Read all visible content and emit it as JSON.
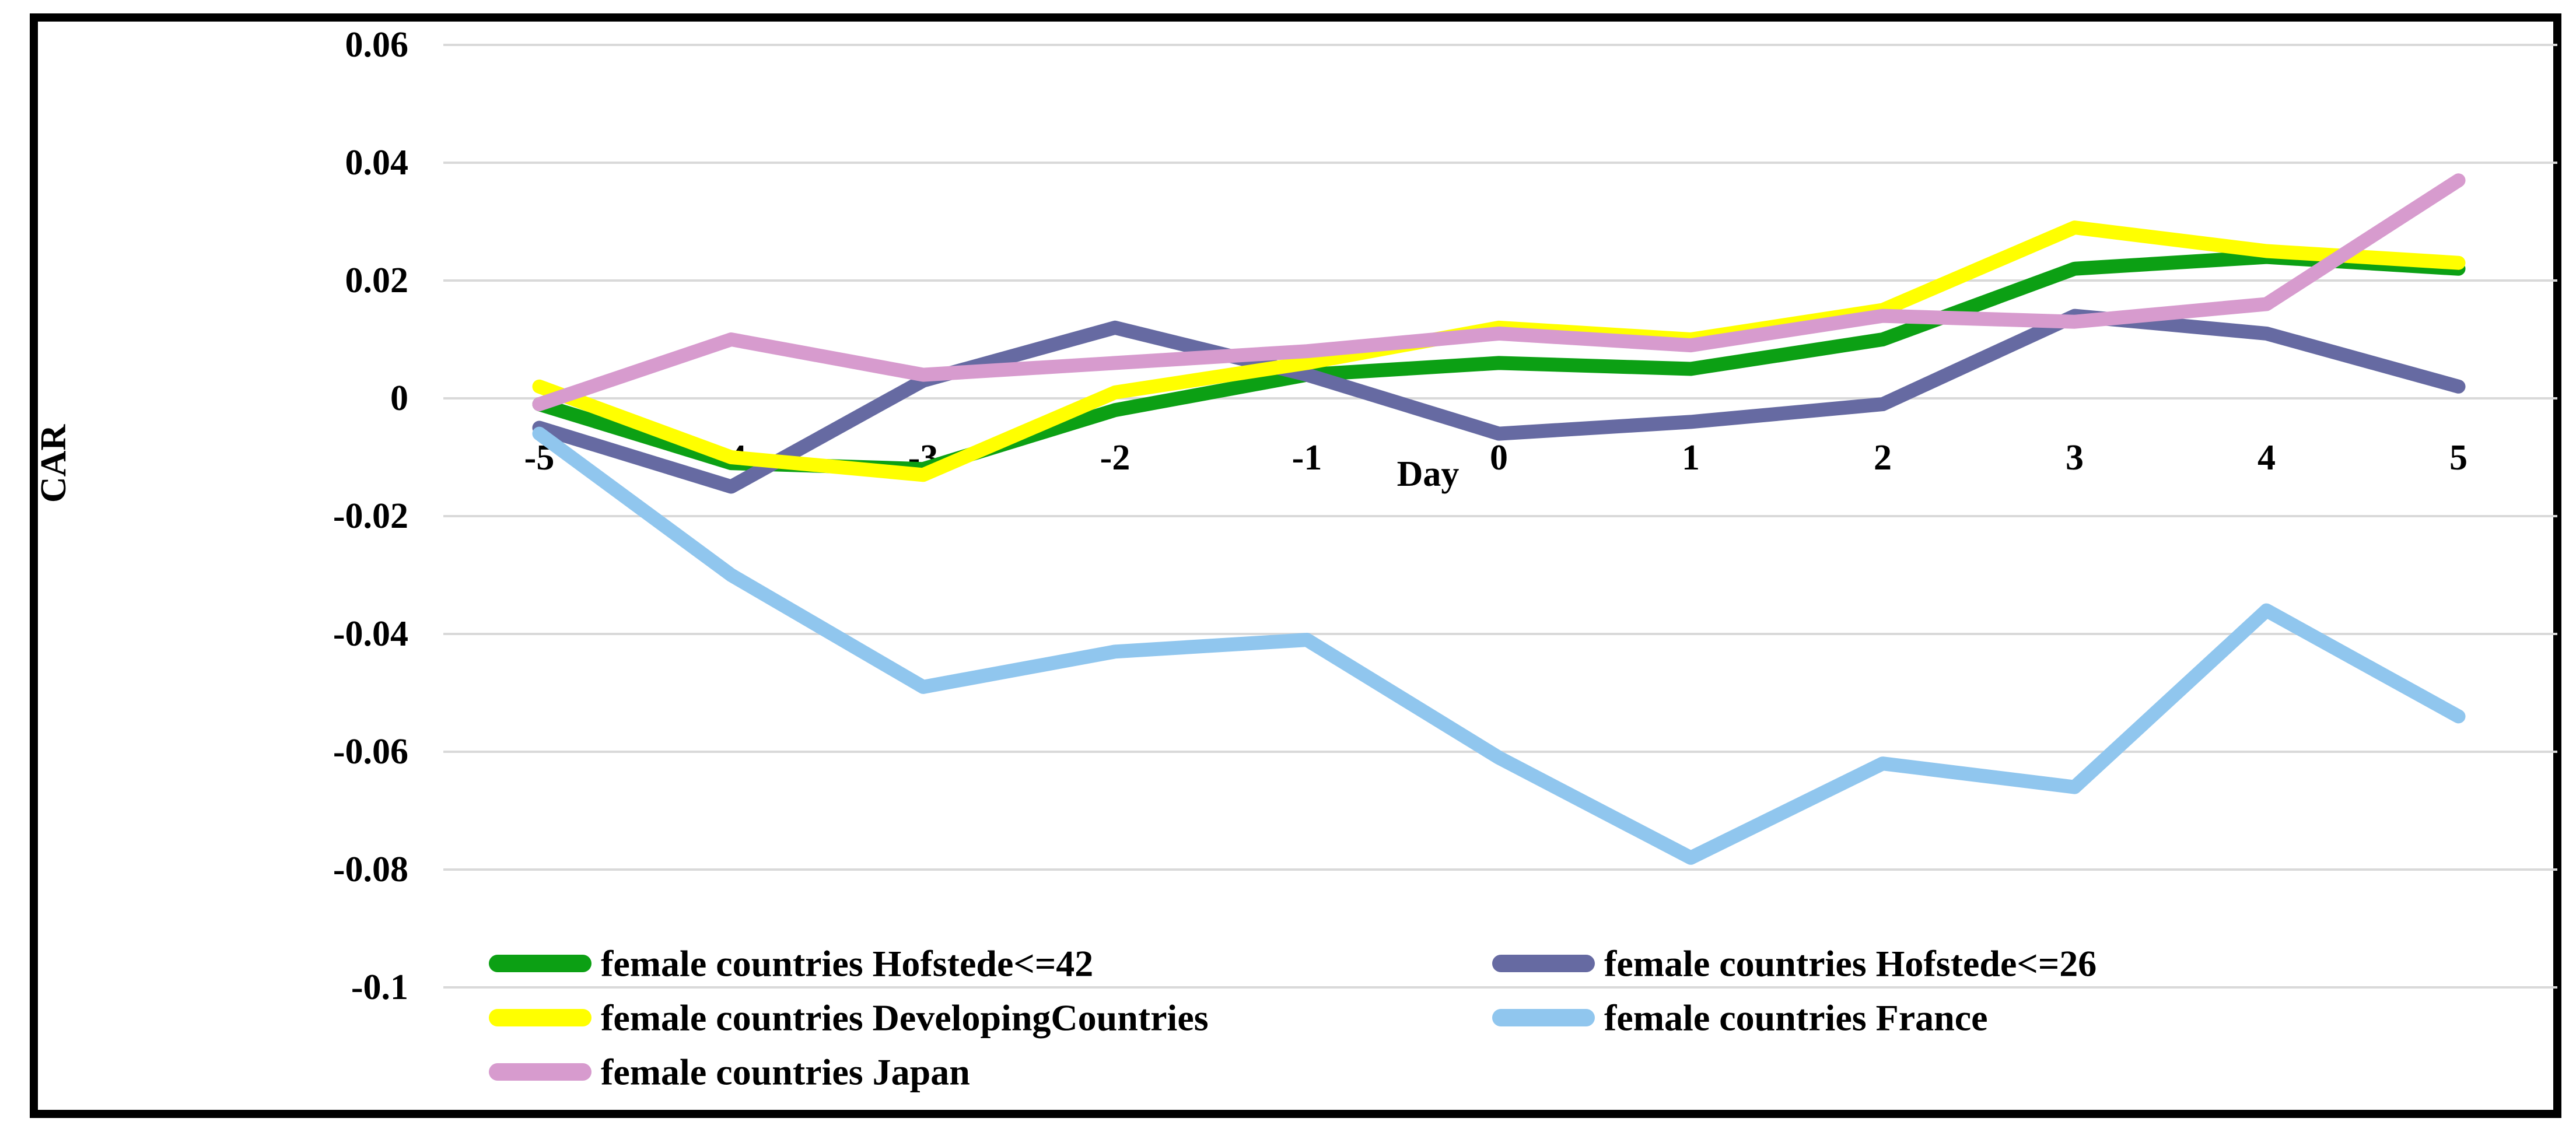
{
  "figure": {
    "background_color": "#ffffff",
    "border_color": "#000000",
    "gridline_color": "#d9d9d9"
  },
  "chart_data": {
    "type": "line",
    "title": "",
    "xlabel": "Day",
    "ylabel": "CAR",
    "ylim": [
      -0.1,
      0.06
    ],
    "grid": "horizontal",
    "legend_position": "bottom-two-columns",
    "categories": [
      "-5",
      "-4",
      "-3",
      "-2",
      "-1",
      "0",
      "1",
      "2",
      "3",
      "4",
      "5"
    ],
    "yticks": [
      "0.06",
      "0.04",
      "0.02",
      "0",
      "-0.02",
      "-0.04",
      "-0.06",
      "-0.08",
      "-0.1"
    ],
    "series": [
      {
        "name": "female countries Hofstede<=42",
        "color": "#0ca014",
        "values": [
          -0.001,
          -0.011,
          -0.012,
          -0.002,
          0.004,
          0.006,
          0.005,
          0.01,
          0.022,
          0.024,
          0.022
        ]
      },
      {
        "name": "female countries Hofstede<=26",
        "color": "#666aa2",
        "values": [
          -0.005,
          -0.015,
          0.003,
          0.012,
          0.004,
          -0.006,
          -0.004,
          -0.001,
          0.014,
          0.011,
          0.002
        ]
      },
      {
        "name": "female countries DevelopingCountries",
        "color": "#ffff00",
        "values": [
          0.002,
          -0.01,
          -0.013,
          0.001,
          0.006,
          0.012,
          0.01,
          0.015,
          0.029,
          0.025,
          0.023
        ]
      },
      {
        "name": "female countries France",
        "color": "#90c6ee",
        "values": [
          -0.006,
          -0.03,
          -0.049,
          -0.043,
          -0.041,
          -0.061,
          -0.078,
          -0.062,
          -0.066,
          -0.036,
          -0.054
        ]
      },
      {
        "name": "female countries Japan",
        "color": "#d79bce",
        "values": [
          -0.001,
          0.01,
          0.004,
          0.006,
          0.008,
          0.011,
          0.009,
          0.014,
          0.013,
          0.016,
          0.037
        ]
      }
    ]
  }
}
